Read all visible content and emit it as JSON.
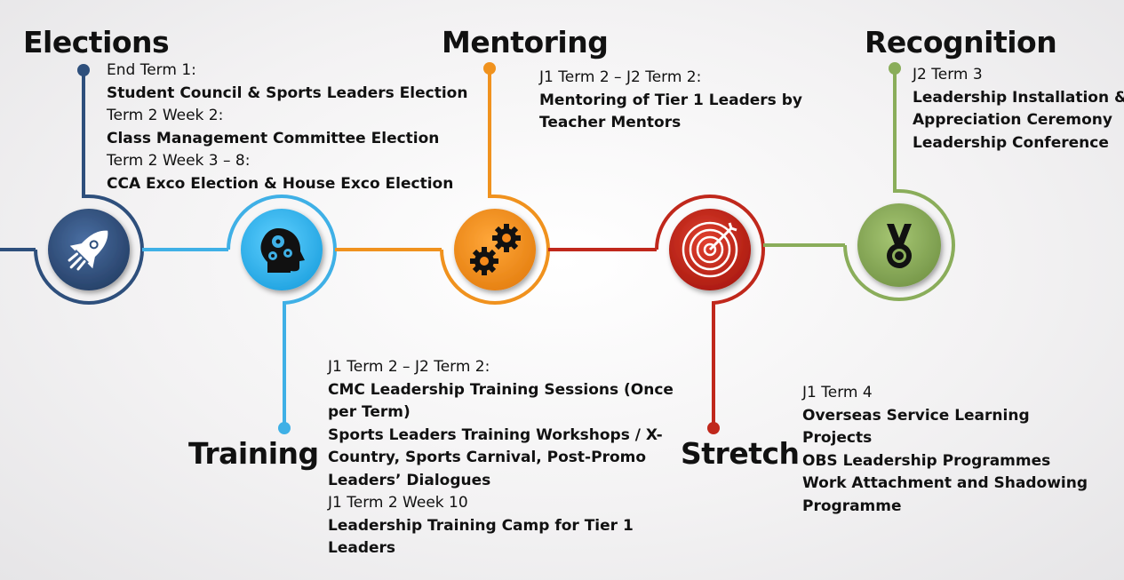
{
  "stages": [
    {
      "key": "elections",
      "title": "Elections",
      "color": "#2e4f7c",
      "icon": "rocket-icon",
      "lines": [
        {
          "text": "End Term 1:",
          "bold": false
        },
        {
          "text": "Student Council & Sports Leaders Election",
          "bold": true
        },
        {
          "text": "Term 2 Week 2:",
          "bold": false
        },
        {
          "text": "Class Management Committee Election",
          "bold": true
        },
        {
          "text": "Term 2 Week 3 – 8:",
          "bold": false
        },
        {
          "text": "CCA Exco Election & House Exco Election",
          "bold": true
        }
      ]
    },
    {
      "key": "training",
      "title": "Training",
      "color": "#3fb0e6",
      "icon": "head-gears-icon",
      "lines": [
        {
          "text": "J1 Term 2 – J2 Term 2:",
          "bold": false
        },
        {
          "text": "CMC Leadership Training Sessions (Once",
          "bold": true
        },
        {
          "text": "per Term)",
          "bold": true
        },
        {
          "text": "Sports Leaders Training Workshops / X-",
          "bold": true
        },
        {
          "text": "Country, Sports Carnival, Post-Promo",
          "bold": true
        },
        {
          "text": "Leaders’ Dialogues",
          "bold": true
        },
        {
          "text": "J1 Term 2 Week 10",
          "bold": false
        },
        {
          "text": "Leadership Training Camp for Tier 1",
          "bold": true
        },
        {
          "text": "Leaders",
          "bold": true
        }
      ]
    },
    {
      "key": "mentoring",
      "title": "Mentoring",
      "color": "#f0921e",
      "icon": "gears-icon",
      "lines": [
        {
          "text": "J1 Term 2 – J2 Term 2:",
          "bold": false
        },
        {
          "text": "Mentoring of Tier 1 Leaders by",
          "bold": true
        },
        {
          "text": "Teacher Mentors",
          "bold": true
        }
      ]
    },
    {
      "key": "stretch",
      "title": "Stretch",
      "color": "#c0281c",
      "icon": "target-icon",
      "lines": [
        {
          "text": "J1 Term 4",
          "bold": false
        },
        {
          "text": "Overseas Service Learning",
          "bold": true
        },
        {
          "text": "Projects",
          "bold": true
        },
        {
          "text": "OBS Leadership Programmes",
          "bold": true
        },
        {
          "text": "Work Attachment and Shadowing",
          "bold": true
        },
        {
          "text": "Programme",
          "bold": true
        }
      ]
    },
    {
      "key": "recognition",
      "title": "Recognition",
      "color": "#8aad5a",
      "icon": "medal-icon",
      "lines": [
        {
          "text": "J2 Term 3",
          "bold": false
        },
        {
          "text": "Leadership Installation &",
          "bold": true
        },
        {
          "text": "Appreciation Ceremony",
          "bold": true
        },
        {
          "text": "Leadership Conference",
          "bold": true
        }
      ]
    }
  ]
}
